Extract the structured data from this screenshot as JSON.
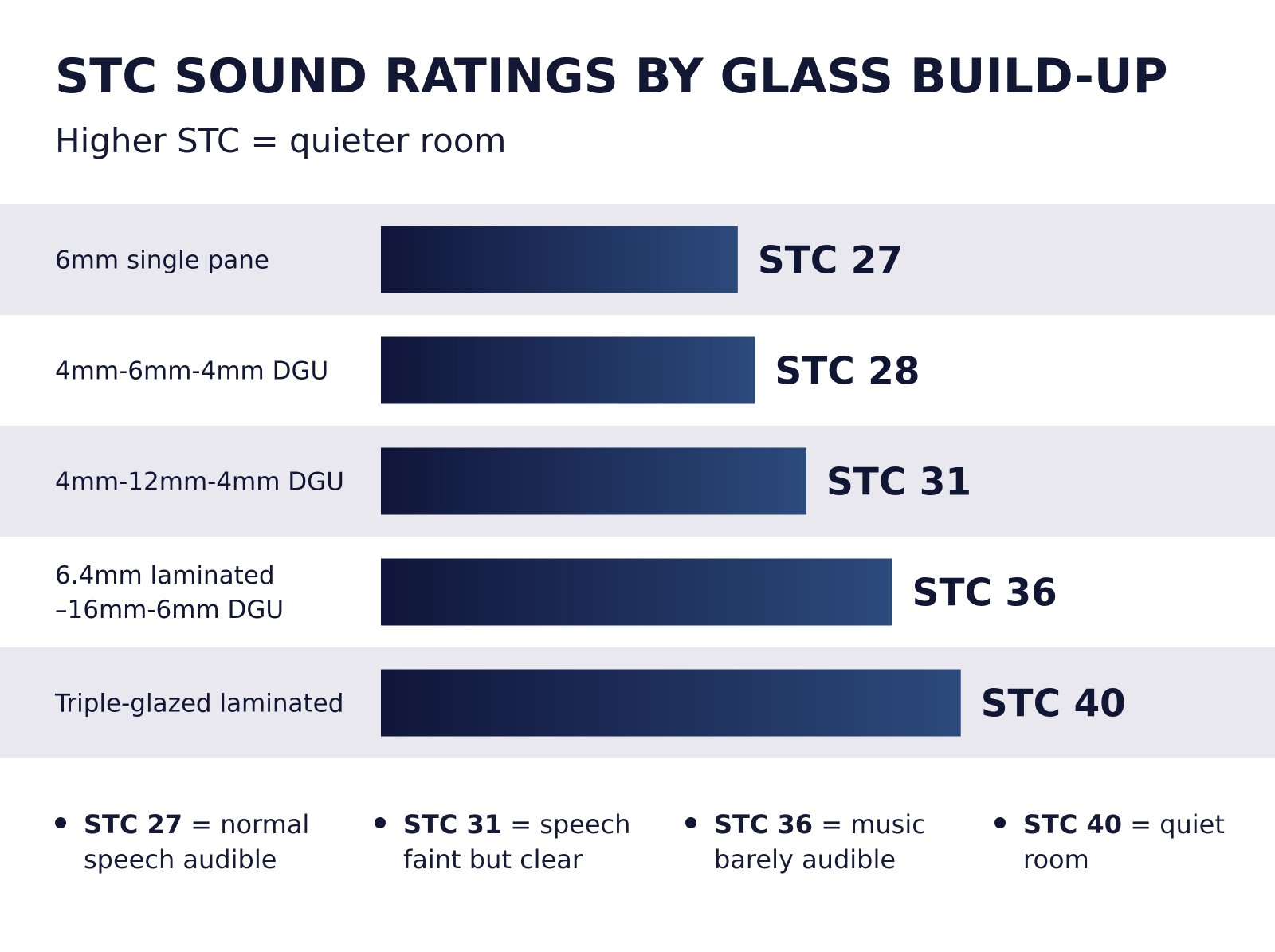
{
  "header": {
    "title": "STC SOUND RATINGS BY GLASS BUILD-UP",
    "subtitle": "Higher STC = quieter room"
  },
  "colors": {
    "bar_start": "#10153a",
    "bar_end": "#2c4a7c",
    "band_shaded": "#e9e8ee",
    "band_plain": "#ffffff",
    "text": "#111634"
  },
  "chart_data": {
    "type": "bar",
    "orientation": "horizontal",
    "title": "STC SOUND RATINGS BY GLASS BUILD-UP",
    "subtitle": "Higher STC = quieter room",
    "xlabel": "",
    "ylabel": "",
    "grid": false,
    "categories": [
      [
        "6mm single pane"
      ],
      [
        "4mm-6mm-4mm DGU"
      ],
      [
        "4mm-12mm-4mm DGU"
      ],
      [
        "6.4mm laminated",
        "–16mm-6mm DGU"
      ],
      [
        "Triple-glazed laminated"
      ]
    ],
    "values": [
      27,
      28,
      31,
      36,
      40
    ],
    "value_labels": [
      "STC 27",
      "STC 28",
      "STC 31",
      "STC 36",
      "STC 40"
    ]
  },
  "legend": {
    "items": [
      {
        "term": "STC 27",
        "desc": " = normal speech audible"
      },
      {
        "term": "STC 31",
        "desc": " = speech faint but clear"
      },
      {
        "term": "STC 36",
        "desc": " = music barely audible"
      },
      {
        "term": "STC 40",
        "desc": " = quiet room"
      }
    ]
  }
}
